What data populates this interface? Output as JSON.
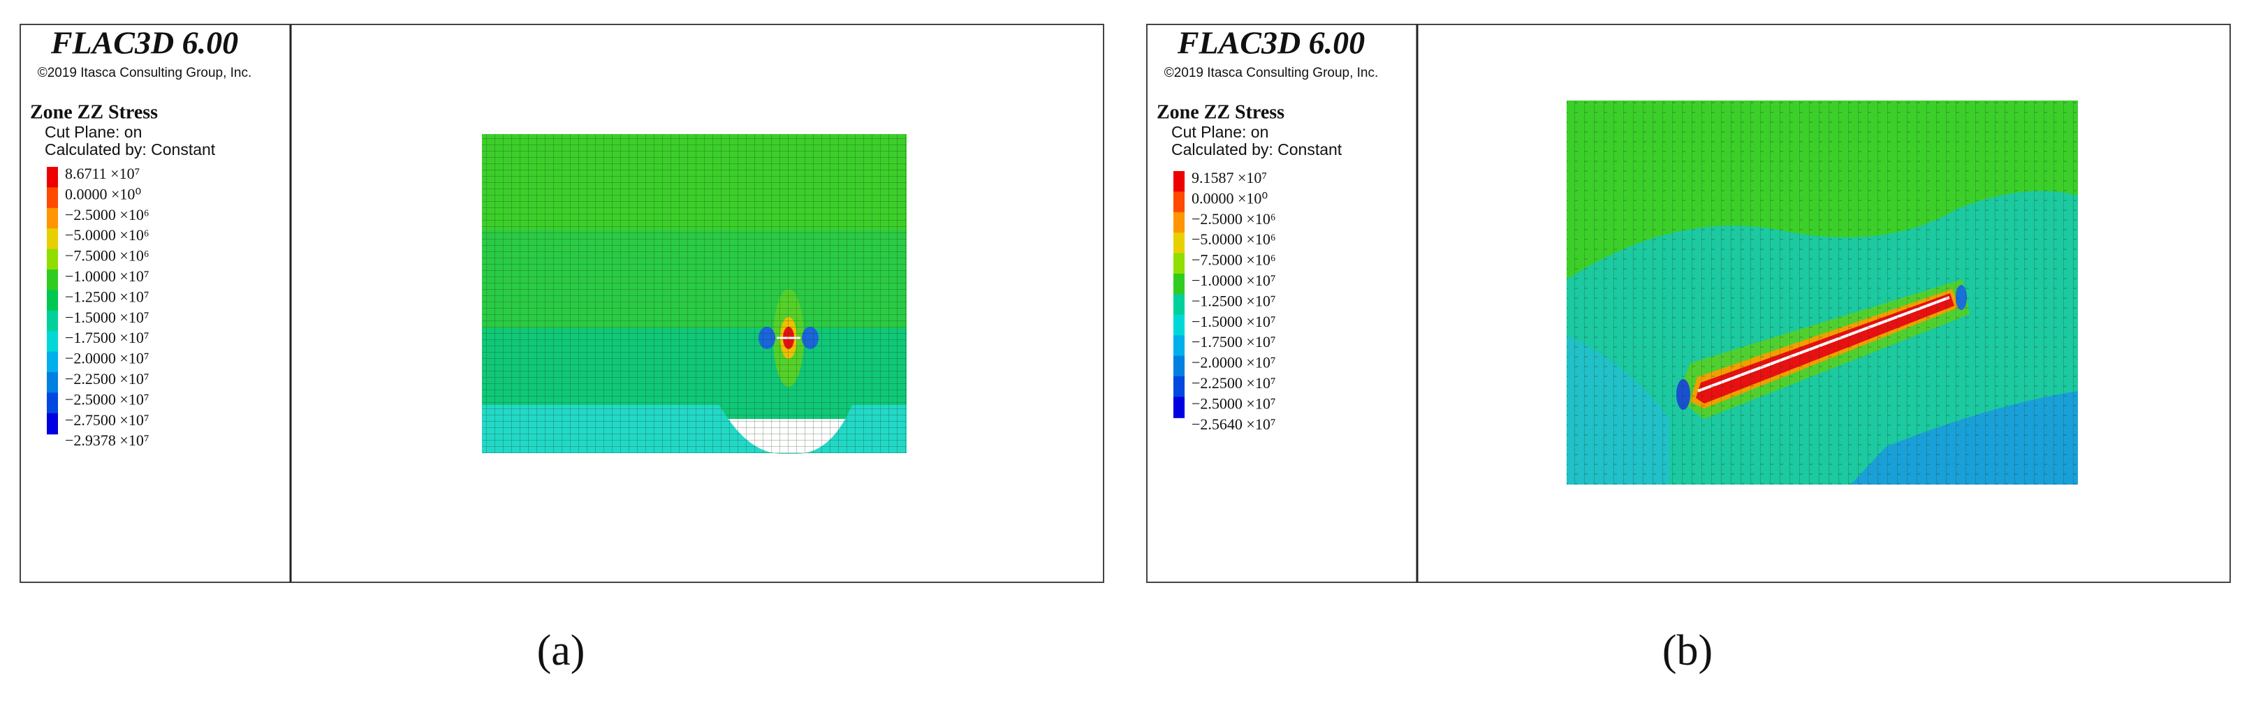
{
  "panels": [
    {
      "label": "(a)",
      "header": {
        "title": "FLAC3D 6.00",
        "copyright": "©2019 Itasca Consulting Group, Inc."
      },
      "legend": {
        "title": "Zone ZZ Stress",
        "lines": [
          "Cut Plane: on",
          "Calculated by: Constant"
        ],
        "entries": [
          "8.6711 ×10⁷",
          "0.0000 ×10⁰",
          "−2.5000 ×10⁶",
          "−5.0000 ×10⁶",
          "−7.5000 ×10⁶",
          "−1.0000 ×10⁷",
          "−1.2500 ×10⁷",
          "−1.5000 ×10⁷",
          "−1.7500 ×10⁷",
          "−2.0000 ×10⁷",
          "−2.2500 ×10⁷",
          "−2.5000 ×10⁷",
          "−2.7500 ×10⁷",
          "−2.9378 ×10⁷"
        ]
      }
    },
    {
      "label": "(b)",
      "header": {
        "title": "FLAC3D 6.00",
        "copyright": "©2019 Itasca Consulting Group, Inc."
      },
      "legend": {
        "title": "Zone ZZ Stress",
        "lines": [
          "Cut Plane: on",
          "Calculated by: Constant"
        ],
        "entries": [
          "9.1587 ×10⁷",
          "0.0000 ×10⁰",
          "−2.5000 ×10⁶",
          "−5.0000 ×10⁶",
          "−7.5000 ×10⁶",
          "−1.0000 ×10⁷",
          "−1.2500 ×10⁷",
          "−1.5000 ×10⁷",
          "−1.7500 ×10⁷",
          "−2.0000 ×10⁷",
          "−2.2500 ×10⁷",
          "−2.5000 ×10⁷",
          "−2.5640 ×10⁷"
        ]
      }
    }
  ]
}
